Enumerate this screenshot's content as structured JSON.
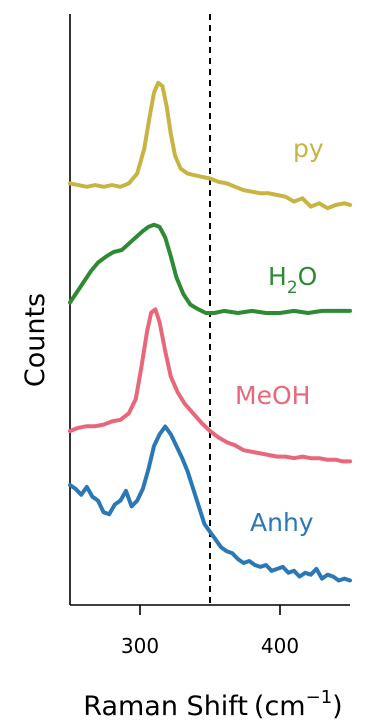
{
  "chart_data": {
    "type": "line",
    "xlabel": "Raman Shift (cm⁻¹)",
    "xlabel_main": "Raman Shift",
    "xlabel_unit_base": "(cm",
    "xlabel_unit_sup": "−1",
    "xlabel_unit_close": ")",
    "ylabel": "Counts",
    "xlim": [
      250,
      450
    ],
    "xticks": [
      300,
      400
    ],
    "xtick_labels": [
      "300",
      "400"
    ],
    "y_ticks_shown": false,
    "vertical_marker": {
      "x": 350,
      "style": "dashed",
      "color": "#000000"
    },
    "series": [
      {
        "name": "py",
        "label_parts": [
          "py"
        ],
        "color": "#c8b443",
        "points": [
          [
            250,
            0.27
          ],
          [
            256,
            0.26
          ],
          [
            262,
            0.25
          ],
          [
            268,
            0.26
          ],
          [
            274,
            0.25
          ],
          [
            280,
            0.26
          ],
          [
            286,
            0.25
          ],
          [
            292,
            0.27
          ],
          [
            298,
            0.33
          ],
          [
            303,
            0.48
          ],
          [
            307,
            0.68
          ],
          [
            310,
            0.82
          ],
          [
            313,
            0.88
          ],
          [
            316,
            0.86
          ],
          [
            319,
            0.74
          ],
          [
            322,
            0.57
          ],
          [
            325,
            0.44
          ],
          [
            329,
            0.36
          ],
          [
            334,
            0.33
          ],
          [
            339,
            0.32
          ],
          [
            344,
            0.31
          ],
          [
            350,
            0.3
          ],
          [
            356,
            0.28
          ],
          [
            362,
            0.27
          ],
          [
            368,
            0.25
          ],
          [
            374,
            0.23
          ],
          [
            380,
            0.22
          ],
          [
            386,
            0.21
          ],
          [
            392,
            0.21
          ],
          [
            398,
            0.2
          ],
          [
            404,
            0.19
          ],
          [
            410,
            0.16
          ],
          [
            416,
            0.18
          ],
          [
            422,
            0.13
          ],
          [
            428,
            0.15
          ],
          [
            434,
            0.12
          ],
          [
            440,
            0.14
          ],
          [
            446,
            0.15
          ],
          [
            450,
            0.14
          ]
        ]
      },
      {
        "name": "H₂O",
        "label_parts": [
          "H",
          "2",
          "O"
        ],
        "color": "#2e8b34",
        "points": [
          [
            250,
            0.05
          ],
          [
            255,
            0.1
          ],
          [
            260,
            0.15
          ],
          [
            265,
            0.2
          ],
          [
            270,
            0.24
          ],
          [
            276,
            0.27
          ],
          [
            281,
            0.29
          ],
          [
            287,
            0.3
          ],
          [
            292,
            0.33
          ],
          [
            297,
            0.36
          ],
          [
            302,
            0.39
          ],
          [
            306,
            0.41
          ],
          [
            310,
            0.42
          ],
          [
            314,
            0.41
          ],
          [
            318,
            0.36
          ],
          [
            322,
            0.27
          ],
          [
            326,
            0.17
          ],
          [
            331,
            0.09
          ],
          [
            336,
            0.04
          ],
          [
            341,
            0.02
          ],
          [
            347,
            0.0
          ],
          [
            353,
            0.0
          ],
          [
            360,
            0.01
          ],
          [
            370,
            0.0
          ],
          [
            380,
            0.01
          ],
          [
            390,
            0.0
          ],
          [
            400,
            0.0
          ],
          [
            410,
            0.01
          ],
          [
            420,
            0.0
          ],
          [
            430,
            0.01
          ],
          [
            440,
            0.01
          ],
          [
            450,
            0.01
          ]
        ]
      },
      {
        "name": "MeOH",
        "label_parts": [
          "MeOH"
        ],
        "color": "#e8677a",
        "points": [
          [
            250,
            0.0
          ],
          [
            256,
            0.02
          ],
          [
            262,
            0.03
          ],
          [
            268,
            0.03
          ],
          [
            274,
            0.04
          ],
          [
            280,
            0.06
          ],
          [
            286,
            0.07
          ],
          [
            292,
            0.11
          ],
          [
            297,
            0.2
          ],
          [
            301,
            0.4
          ],
          [
            305,
            0.62
          ],
          [
            308,
            0.74
          ],
          [
            311,
            0.76
          ],
          [
            314,
            0.68
          ],
          [
            318,
            0.5
          ],
          [
            322,
            0.34
          ],
          [
            327,
            0.24
          ],
          [
            332,
            0.17
          ],
          [
            338,
            0.11
          ],
          [
            344,
            0.05
          ],
          [
            350,
            0.0
          ],
          [
            356,
            -0.04
          ],
          [
            362,
            -0.07
          ],
          [
            368,
            -0.09
          ],
          [
            374,
            -0.12
          ],
          [
            380,
            -0.13
          ],
          [
            386,
            -0.14
          ],
          [
            392,
            -0.15
          ],
          [
            398,
            -0.16
          ],
          [
            404,
            -0.16
          ],
          [
            410,
            -0.17
          ],
          [
            416,
            -0.16
          ],
          [
            422,
            -0.17
          ],
          [
            428,
            -0.17
          ],
          [
            434,
            -0.18
          ],
          [
            440,
            -0.18
          ],
          [
            445,
            -0.19
          ],
          [
            450,
            -0.19
          ]
        ]
      },
      {
        "name": "Anhy",
        "label_parts": [
          "Anhy"
        ],
        "color": "#2a78b6",
        "points": [
          [
            250,
            0.4
          ],
          [
            254,
            0.38
          ],
          [
            258,
            0.35
          ],
          [
            262,
            0.39
          ],
          [
            266,
            0.34
          ],
          [
            270,
            0.32
          ],
          [
            274,
            0.26
          ],
          [
            278,
            0.25
          ],
          [
            282,
            0.3
          ],
          [
            286,
            0.32
          ],
          [
            290,
            0.37
          ],
          [
            294,
            0.29
          ],
          [
            298,
            0.32
          ],
          [
            302,
            0.38
          ],
          [
            306,
            0.48
          ],
          [
            310,
            0.6
          ],
          [
            314,
            0.66
          ],
          [
            318,
            0.7
          ],
          [
            322,
            0.66
          ],
          [
            326,
            0.6
          ],
          [
            330,
            0.54
          ],
          [
            334,
            0.47
          ],
          [
            338,
            0.38
          ],
          [
            342,
            0.29
          ],
          [
            346,
            0.2
          ],
          [
            350,
            0.16
          ],
          [
            354,
            0.12
          ],
          [
            358,
            0.08
          ],
          [
            362,
            0.06
          ],
          [
            366,
            0.05
          ],
          [
            370,
            0.02
          ],
          [
            374,
            0.0
          ],
          [
            378,
            0.01
          ],
          [
            382,
            -0.01
          ],
          [
            386,
            -0.02
          ],
          [
            390,
            -0.01
          ],
          [
            394,
            -0.04
          ],
          [
            398,
            -0.03
          ],
          [
            402,
            -0.02
          ],
          [
            406,
            -0.05
          ],
          [
            410,
            -0.04
          ],
          [
            414,
            -0.07
          ],
          [
            418,
            -0.05
          ],
          [
            422,
            -0.06
          ],
          [
            426,
            -0.03
          ],
          [
            430,
            -0.08
          ],
          [
            434,
            -0.06
          ],
          [
            438,
            -0.07
          ],
          [
            442,
            -0.09
          ],
          [
            446,
            -0.08
          ],
          [
            450,
            -0.09
          ]
        ]
      }
    ]
  }
}
